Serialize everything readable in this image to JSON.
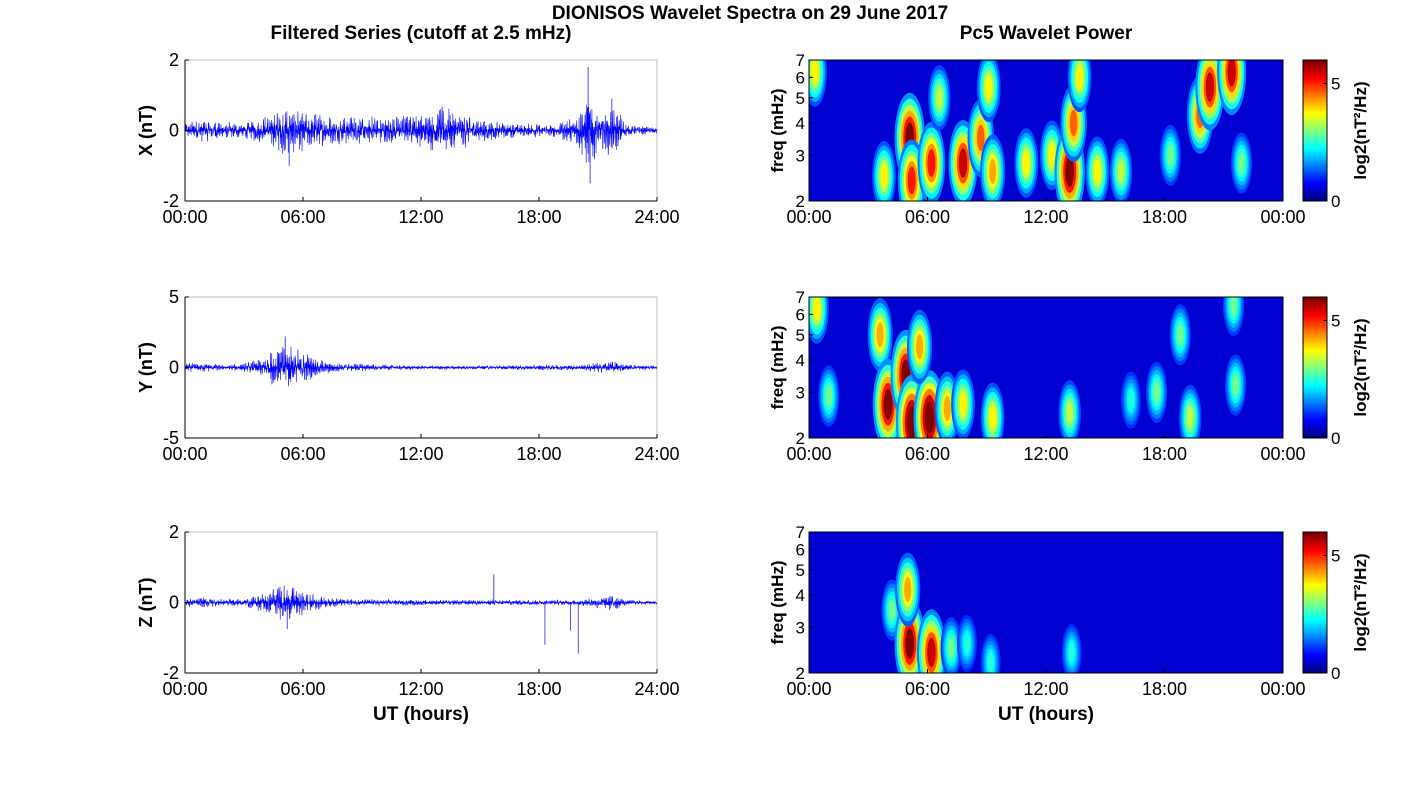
{
  "title": "DIONISOS Wavelet Spectra on 29 June 2017",
  "left_column_title": "Filtered Series (cutoff at 2.5 mHz)",
  "right_column_title": "Pc5 Wavelet Power",
  "colors": {
    "line": "#0000ff",
    "axis": "#000000",
    "box": "#bfbfbf"
  },
  "chart_data": [
    {
      "type": "line",
      "panel": "X",
      "ylabel": "X (nT)",
      "ylim": [
        -2,
        2
      ],
      "yticks": [
        "-2",
        "0",
        "2"
      ],
      "xlim": [
        0,
        24
      ],
      "xticks": [
        "00:00",
        "06:00",
        "12:00",
        "18:00",
        "24:00"
      ],
      "xlabel": "",
      "envelope": [
        {
          "t": 0,
          "a": 0.25
        },
        {
          "t": 1,
          "a": 0.35
        },
        {
          "t": 2,
          "a": 0.25
        },
        {
          "t": 3,
          "a": 0.25
        },
        {
          "t": 4,
          "a": 0.4
        },
        {
          "t": 5,
          "a": 0.7
        },
        {
          "t": 6,
          "a": 0.6
        },
        {
          "t": 7,
          "a": 0.45
        },
        {
          "t": 8,
          "a": 0.4
        },
        {
          "t": 9,
          "a": 0.45
        },
        {
          "t": 10,
          "a": 0.4
        },
        {
          "t": 11,
          "a": 0.45
        },
        {
          "t": 12,
          "a": 0.5
        },
        {
          "t": 13,
          "a": 0.7
        },
        {
          "t": 14,
          "a": 0.55
        },
        {
          "t": 15,
          "a": 0.35
        },
        {
          "t": 16,
          "a": 0.25
        },
        {
          "t": 17,
          "a": 0.2
        },
        {
          "t": 18,
          "a": 0.2
        },
        {
          "t": 19,
          "a": 0.2
        },
        {
          "t": 20,
          "a": 0.6
        },
        {
          "t": 20.6,
          "a": 1.4
        },
        {
          "t": 21,
          "a": 0.5
        },
        {
          "t": 21.8,
          "a": 0.8
        },
        {
          "t": 22.5,
          "a": 0.15
        },
        {
          "t": 24,
          "a": 0.1
        }
      ],
      "spikes": [
        {
          "t": 20.5,
          "v": 1.8
        },
        {
          "t": 20.6,
          "v": -1.5
        },
        {
          "t": 5.3,
          "v": -1.0
        },
        {
          "t": 21.7,
          "v": 0.9
        }
      ]
    },
    {
      "type": "line",
      "panel": "Y",
      "ylabel": "Y (nT)",
      "ylim": [
        -5,
        5
      ],
      "yticks": [
        "-5",
        "0",
        "5"
      ],
      "xlim": [
        0,
        24
      ],
      "xticks": [
        "00:00",
        "06:00",
        "12:00",
        "18:00",
        "24:00"
      ],
      "xlabel": "",
      "envelope": [
        {
          "t": 0,
          "a": 0.3
        },
        {
          "t": 1,
          "a": 0.35
        },
        {
          "t": 2,
          "a": 0.2
        },
        {
          "t": 3,
          "a": 0.3
        },
        {
          "t": 4,
          "a": 0.8
        },
        {
          "t": 5,
          "a": 1.9
        },
        {
          "t": 5.5,
          "a": 1.5
        },
        {
          "t": 6,
          "a": 1.2
        },
        {
          "t": 7,
          "a": 0.5
        },
        {
          "t": 8,
          "a": 0.3
        },
        {
          "t": 9,
          "a": 0.3
        },
        {
          "t": 10,
          "a": 0.2
        },
        {
          "t": 12,
          "a": 0.15
        },
        {
          "t": 14,
          "a": 0.15
        },
        {
          "t": 16,
          "a": 0.15
        },
        {
          "t": 18,
          "a": 0.2
        },
        {
          "t": 20,
          "a": 0.2
        },
        {
          "t": 21.8,
          "a": 0.5
        },
        {
          "t": 22.5,
          "a": 0.2
        },
        {
          "t": 24,
          "a": 0.15
        }
      ],
      "spikes": [
        {
          "t": 5.1,
          "v": 2.2
        }
      ]
    },
    {
      "type": "line",
      "panel": "Z",
      "ylabel": "Z (nT)",
      "ylim": [
        -2,
        2
      ],
      "yticks": [
        "-2",
        "0",
        "2"
      ],
      "xlim": [
        0,
        24
      ],
      "xticks": [
        "00:00",
        "06:00",
        "12:00",
        "18:00",
        "24:00"
      ],
      "xlabel": "UT (hours)",
      "envelope": [
        {
          "t": 0,
          "a": 0.12
        },
        {
          "t": 1,
          "a": 0.15
        },
        {
          "t": 2,
          "a": 0.1
        },
        {
          "t": 3,
          "a": 0.12
        },
        {
          "t": 4,
          "a": 0.3
        },
        {
          "t": 5,
          "a": 0.6
        },
        {
          "t": 5.5,
          "a": 0.45
        },
        {
          "t": 6,
          "a": 0.35
        },
        {
          "t": 7,
          "a": 0.15
        },
        {
          "t": 9,
          "a": 0.1
        },
        {
          "t": 12,
          "a": 0.08
        },
        {
          "t": 16,
          "a": 0.08
        },
        {
          "t": 20,
          "a": 0.08
        },
        {
          "t": 21.8,
          "a": 0.25
        },
        {
          "t": 22.5,
          "a": 0.08
        },
        {
          "t": 24,
          "a": 0.06
        }
      ],
      "spikes": [
        {
          "t": 15.7,
          "v": 0.8
        },
        {
          "t": 18.3,
          "v": -1.2
        },
        {
          "t": 19.6,
          "v": -0.8
        },
        {
          "t": 20.0,
          "v": -1.45
        },
        {
          "t": 5.2,
          "v": -0.75
        }
      ]
    },
    {
      "type": "heatmap",
      "panel": "X power",
      "ylabel": "freq (mHz)",
      "ylim": [
        2,
        7
      ],
      "yscale": "log",
      "yticks": [
        "2",
        "3",
        "4",
        "5",
        "6",
        "7"
      ],
      "xlim": [
        0,
        24
      ],
      "xticks": [
        "00:00",
        "06:00",
        "12:00",
        "18:00",
        "00:00"
      ],
      "xlabel": "",
      "colorbar_label": "log2(nT²/Hz)",
      "colorbar_ticks": [
        "0",
        "5"
      ],
      "clim": [
        0,
        6
      ],
      "blobs": [
        {
          "t": 0.3,
          "f": 6.3,
          "p": 3.5
        },
        {
          "t": 3.8,
          "f": 2.5,
          "p": 3.5
        },
        {
          "t": 5.1,
          "f": 3.5,
          "p": 6
        },
        {
          "t": 5.2,
          "f": 2.4,
          "p": 5
        },
        {
          "t": 6.2,
          "f": 2.8,
          "p": 5
        },
        {
          "t": 6.6,
          "f": 5.0,
          "p": 3
        },
        {
          "t": 7.8,
          "f": 2.8,
          "p": 5.5
        },
        {
          "t": 8.7,
          "f": 3.5,
          "p": 4.5
        },
        {
          "t": 9.1,
          "f": 5.5,
          "p": 3.5
        },
        {
          "t": 9.3,
          "f": 2.6,
          "p": 4
        },
        {
          "t": 11.0,
          "f": 2.8,
          "p": 3.5
        },
        {
          "t": 12.3,
          "f": 3.0,
          "p": 3.5
        },
        {
          "t": 13.2,
          "f": 2.6,
          "p": 6
        },
        {
          "t": 13.4,
          "f": 4.0,
          "p": 4.5
        },
        {
          "t": 13.7,
          "f": 6.0,
          "p": 3.5
        },
        {
          "t": 14.6,
          "f": 2.6,
          "p": 3.5
        },
        {
          "t": 15.8,
          "f": 2.6,
          "p": 3
        },
        {
          "t": 18.3,
          "f": 3.0,
          "p": 2.5
        },
        {
          "t": 19.8,
          "f": 4.3,
          "p": 4.5
        },
        {
          "t": 20.3,
          "f": 5.5,
          "p": 5.5
        },
        {
          "t": 21.4,
          "f": 6.3,
          "p": 5.5
        },
        {
          "t": 21.9,
          "f": 2.8,
          "p": 2.5
        }
      ]
    },
    {
      "type": "heatmap",
      "panel": "Y power",
      "ylabel": "freq (mHz)",
      "ylim": [
        2,
        7
      ],
      "yscale": "log",
      "yticks": [
        "2",
        "3",
        "4",
        "5",
        "6",
        "7"
      ],
      "xlim": [
        0,
        24
      ],
      "xticks": [
        "00:00",
        "06:00",
        "12:00",
        "18:00",
        "00:00"
      ],
      "xlabel": "",
      "colorbar_label": "log2(nT²/Hz)",
      "colorbar_ticks": [
        "0",
        "5"
      ],
      "clim": [
        0,
        6
      ],
      "blobs": [
        {
          "t": 0.4,
          "f": 6.3,
          "p": 3.5
        },
        {
          "t": 1.0,
          "f": 2.9,
          "p": 2.5
        },
        {
          "t": 3.6,
          "f": 5.0,
          "p": 4
        },
        {
          "t": 4.0,
          "f": 2.7,
          "p": 6
        },
        {
          "t": 4.9,
          "f": 3.5,
          "p": 6
        },
        {
          "t": 5.2,
          "f": 2.3,
          "p": 6.5
        },
        {
          "t": 6.1,
          "f": 2.4,
          "p": 6.5
        },
        {
          "t": 5.6,
          "f": 4.5,
          "p": 4
        },
        {
          "t": 7.0,
          "f": 2.6,
          "p": 4
        },
        {
          "t": 7.8,
          "f": 2.7,
          "p": 3.5
        },
        {
          "t": 9.3,
          "f": 2.4,
          "p": 3.5
        },
        {
          "t": 13.2,
          "f": 2.5,
          "p": 3
        },
        {
          "t": 16.3,
          "f": 2.8,
          "p": 2
        },
        {
          "t": 17.6,
          "f": 3.0,
          "p": 2.5
        },
        {
          "t": 18.8,
          "f": 5.0,
          "p": 2.5
        },
        {
          "t": 19.3,
          "f": 2.4,
          "p": 3
        },
        {
          "t": 21.5,
          "f": 6.5,
          "p": 2.5
        },
        {
          "t": 21.6,
          "f": 3.2,
          "p": 2.5
        }
      ]
    },
    {
      "type": "heatmap",
      "panel": "Z power",
      "ylabel": "freq (mHz)",
      "ylim": [
        2,
        7
      ],
      "yscale": "log",
      "yticks": [
        "2",
        "3",
        "4",
        "5",
        "6",
        "7"
      ],
      "xlim": [
        0,
        24
      ],
      "xticks": [
        "00:00",
        "06:00",
        "12:00",
        "18:00",
        "00:00"
      ],
      "xlabel": "UT (hours)",
      "colorbar_label": "log2(nT²/Hz)",
      "colorbar_ticks": [
        "0",
        "5"
      ],
      "clim": [
        0,
        6
      ],
      "blobs": [
        {
          "t": 4.2,
          "f": 3.5,
          "p": 2.5
        },
        {
          "t": 5.1,
          "f": 2.6,
          "p": 6
        },
        {
          "t": 5.0,
          "f": 4.2,
          "p": 4
        },
        {
          "t": 6.2,
          "f": 2.4,
          "p": 5.5
        },
        {
          "t": 7.2,
          "f": 2.5,
          "p": 2.5
        },
        {
          "t": 8.0,
          "f": 2.6,
          "p": 2
        },
        {
          "t": 9.2,
          "f": 2.2,
          "p": 2
        },
        {
          "t": 13.3,
          "f": 2.4,
          "p": 2
        }
      ]
    }
  ]
}
